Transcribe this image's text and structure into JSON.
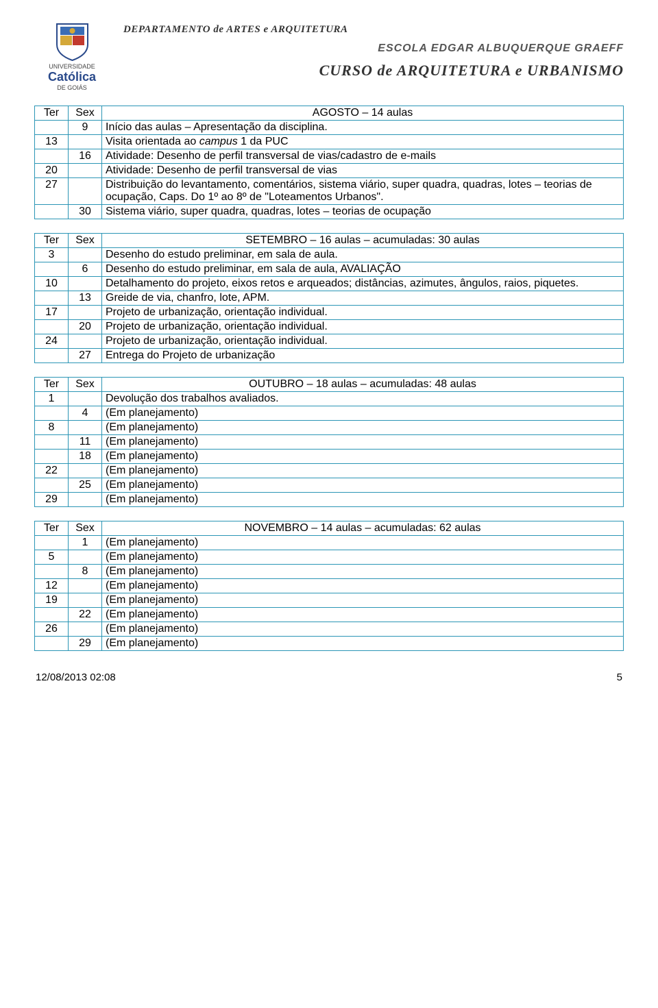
{
  "header": {
    "logo": {
      "top_label": "UNIVERSIDADE",
      "name": "Católica",
      "region": "DE GOIÁS",
      "shield_colors": {
        "border": "#2a4a8b",
        "bg": "#ffffff",
        "accent_red": "#c23a2e",
        "accent_blue": "#3a6db5",
        "accent_gold": "#d4a839"
      }
    },
    "department": "DEPARTAMENTO de ARTES e ARQUITETURA",
    "school": "ESCOLA EDGAR ALBUQUERQUE GRAEFF",
    "course": "CURSO de ARQUITETURA e URBANISMO",
    "text_color": "#333333"
  },
  "tables": {
    "border_color": "#2a95b5",
    "col_headers": {
      "c1": "Ter",
      "c2": "Sex"
    },
    "agosto": {
      "title": "AGOSTO – 14 aulas",
      "rows": [
        {
          "c1": "",
          "c2": "9",
          "text": "Início das aulas – Apresentação da disciplina."
        },
        {
          "c1": "13",
          "c2": "",
          "text_parts": [
            "Visita orientada ao ",
            "campus",
            " 1  da PUC"
          ],
          "italic_idx": 1
        },
        {
          "c1": "",
          "c2": "16",
          "text": "Atividade: Desenho de perfil transversal de vias/cadastro de e-mails"
        },
        {
          "c1": "20",
          "c2": "",
          "text": "Atividade: Desenho de perfil transversal de vias"
        },
        {
          "c1": "27",
          "c2": "",
          "text": "Distribuição do levantamento, comentários, sistema viário, super quadra, quadras, lotes – teorias de ocupação, Caps. Do 1º ao 8º de \"Loteamentos Urbanos\"."
        },
        {
          "c1": "",
          "c2": "30",
          "text": "Sistema viário, super quadra, quadras, lotes – teorias de ocupação"
        }
      ]
    },
    "setembro": {
      "title": "SETEMBRO – 16 aulas – acumuladas: 30 aulas",
      "rows": [
        {
          "c1": "3",
          "c2": "",
          "text": "Desenho do estudo preliminar, em sala de aula."
        },
        {
          "c1": "",
          "c2": "6",
          "text": "Desenho do estudo preliminar, em sala de aula, AVALIAÇÃO"
        },
        {
          "c1": "10",
          "c2": "",
          "text": "Detalhamento do projeto, eixos retos e arqueados; distâncias, azimutes, ângulos, raios, piquetes."
        },
        {
          "c1": "",
          "c2": "13",
          "text": "Greide de via, chanfro, lote, APM."
        },
        {
          "c1": "17",
          "c2": "",
          "text": "Projeto de urbanização, orientação individual."
        },
        {
          "c1": "",
          "c2": "20",
          "text": "Projeto de urbanização, orientação individual."
        },
        {
          "c1": "24",
          "c2": "",
          "text": "Projeto de urbanização, orientação individual."
        },
        {
          "c1": "",
          "c2": "27",
          "text": "Entrega do Projeto de urbanização"
        }
      ]
    },
    "outubro": {
      "title": "OUTUBRO – 18 aulas – acumuladas: 48 aulas",
      "rows": [
        {
          "c1": "1",
          "c2": "",
          "text": "Devolução dos trabalhos avaliados."
        },
        {
          "c1": "",
          "c2": "4",
          "text": "(Em planejamento)"
        },
        {
          "c1": "8",
          "c2": "",
          "text": "(Em planejamento)"
        },
        {
          "c1": "",
          "c2": "11",
          "text": "(Em planejamento)"
        },
        {
          "c1": "",
          "c2": "18",
          "text": "(Em planejamento)"
        },
        {
          "c1": "22",
          "c2": "",
          "text": "(Em planejamento)"
        },
        {
          "c1": "",
          "c2": "25",
          "text": "(Em planejamento)"
        },
        {
          "c1": "29",
          "c2": "",
          "text": "(Em planejamento)"
        }
      ]
    },
    "novembro": {
      "title": "NOVEMBRO – 14 aulas – acumuladas: 62 aulas",
      "rows": [
        {
          "c1": "",
          "c2": "1",
          "text": "(Em planejamento)"
        },
        {
          "c1": "5",
          "c2": "",
          "text": "(Em planejamento)"
        },
        {
          "c1": "",
          "c2": "8",
          "text": "(Em planejamento)"
        },
        {
          "c1": "12",
          "c2": "",
          "text": "(Em planejamento)"
        },
        {
          "c1": "19",
          "c2": "",
          "text": "(Em planejamento)"
        },
        {
          "c1": "",
          "c2": "22",
          "text": "(Em planejamento)"
        },
        {
          "c1": "26",
          "c2": "",
          "text": "(Em planejamento)"
        },
        {
          "c1": "",
          "c2": "29",
          "text": "(Em planejamento)"
        }
      ]
    }
  },
  "footer": {
    "timestamp": "12/08/2013  02:08",
    "page": "5"
  }
}
